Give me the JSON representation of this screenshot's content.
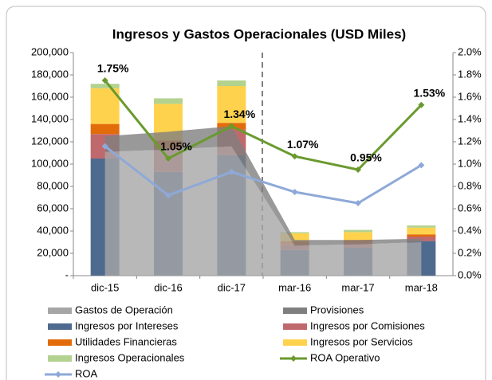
{
  "chart_data": {
    "type": "bar",
    "title": "Ingresos y Gastos Operacionales (USD Miles)",
    "categories": [
      "dic-15",
      "dic-16",
      "dic-17",
      "mar-16",
      "mar-17",
      "mar-18"
    ],
    "ylim": [
      0,
      200000
    ],
    "yticks": [
      {
        "value": 0,
        "label": "-"
      },
      {
        "value": 20000,
        "label": "20,000"
      },
      {
        "value": 40000,
        "label": "40,000"
      },
      {
        "value": 60000,
        "label": "60,000"
      },
      {
        "value": 80000,
        "label": "80,000"
      },
      {
        "value": 100000,
        "label": "100,000"
      },
      {
        "value": 120000,
        "label": "120,000"
      },
      {
        "value": 140000,
        "label": "140,000"
      },
      {
        "value": 160000,
        "label": "160,000"
      },
      {
        "value": 180000,
        "label": "180,000"
      },
      {
        "value": 200000,
        "label": "200,000"
      }
    ],
    "y2lim": [
      0,
      2.0
    ],
    "y2ticks": [
      {
        "value": 0,
        "label": "0.0%"
      },
      {
        "value": 0.2,
        "label": "0.2%"
      },
      {
        "value": 0.4,
        "label": "0.4%"
      },
      {
        "value": 0.6,
        "label": "0.6%"
      },
      {
        "value": 0.8,
        "label": "0.8%"
      },
      {
        "value": 1.0,
        "label": "1.0%"
      },
      {
        "value": 1.2,
        "label": "1.2%"
      },
      {
        "value": 1.4,
        "label": "1.4%"
      },
      {
        "value": 1.6,
        "label": "1.6%"
      },
      {
        "value": 1.8,
        "label": "1.8%"
      },
      {
        "value": 2.0,
        "label": "2.0%"
      }
    ],
    "series": [
      {
        "name": "Gastos de Operación",
        "type": "area",
        "color": "#a6a6a6",
        "values": [
          111000,
          113000,
          116000,
          27000,
          28000,
          30000
        ]
      },
      {
        "name": "Provisiones",
        "type": "area",
        "color": "#7f7f7f",
        "values": [
          14000,
          16000,
          18000,
          5000,
          4000,
          3000
        ]
      },
      {
        "name": "Ingresos por Intereses",
        "type": "bar",
        "color": "#4f6a8f",
        "values": [
          105000,
          93000,
          108000,
          23000,
          25000,
          31000
        ]
      },
      {
        "name": "Ingresos por Comisiones",
        "type": "bar",
        "color": "#c0696c",
        "values": [
          22000,
          21000,
          23000,
          5000,
          4000,
          4000
        ]
      },
      {
        "name": "Utilidades Financieras",
        "type": "bar",
        "color": "#e36c0a",
        "values": [
          9000,
          7000,
          6000,
          3000,
          3000,
          2000
        ]
      },
      {
        "name": "Ingresos por Servicios",
        "type": "bar",
        "color": "#ffd24d",
        "values": [
          32000,
          33000,
          33000,
          7000,
          7000,
          6000
        ]
      },
      {
        "name": "Ingresos Operacionales",
        "type": "bar",
        "color": "#b3d28f",
        "values": [
          4000,
          5000,
          5000,
          1000,
          2000,
          2000
        ]
      },
      {
        "name": "ROA Operativo",
        "type": "line",
        "axis": "y2",
        "color": "#6a9a2e",
        "values": [
          1.75,
          1.05,
          1.34,
          1.07,
          0.95,
          1.53
        ],
        "value_labels": [
          "1.75%",
          "1.05%",
          "1.34%",
          "1.07%",
          "0.95%",
          "1.53%"
        ]
      },
      {
        "name": "ROA",
        "type": "line",
        "axis": "y2",
        "color": "#8ea9d8",
        "values": [
          1.16,
          0.72,
          0.93,
          0.75,
          0.65,
          0.99
        ]
      }
    ]
  }
}
